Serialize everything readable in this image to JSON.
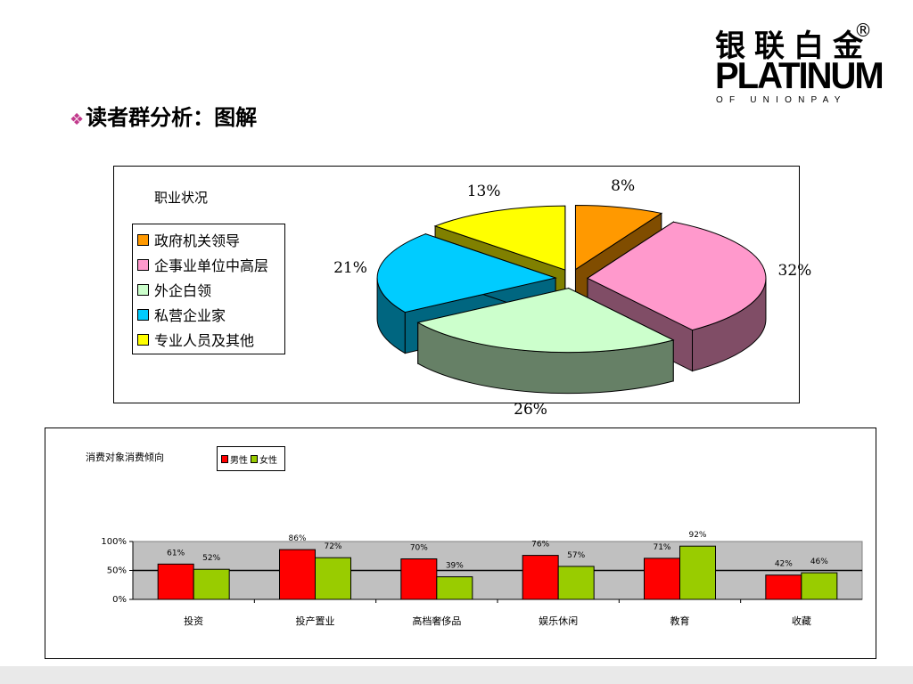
{
  "title": "读者群分析：图解",
  "logo": {
    "cn": "银联白金",
    "en": "PLATINUM",
    "sub": "OF UNIONPAY",
    "reg": "®"
  },
  "chart_data": [
    {
      "type": "pie",
      "title": "职业状况",
      "categories": [
        "政府机关领导",
        "企事业单位中高层",
        "外企白领",
        "私营企业家",
        "专业人员及其他"
      ],
      "values": [
        8,
        32,
        26,
        21,
        13
      ],
      "labels": [
        "8%",
        "32%",
        "26%",
        "21%",
        "13%"
      ],
      "colors": [
        "#ff9900",
        "#ff99cc",
        "#ccffcc",
        "#00ccff",
        "#ffff00"
      ],
      "legend_position": "left"
    },
    {
      "type": "bar",
      "title": "消费对象消费倾向",
      "categories": [
        "投资",
        "投产置业",
        "高档奢侈品",
        "娱乐休闲",
        "教育",
        "收藏"
      ],
      "series": [
        {
          "name": "男性",
          "values": [
            61,
            86,
            70,
            76,
            71,
            42
          ],
          "labels": [
            "61%",
            "86%",
            "70%",
            "76%",
            "71%",
            "42%"
          ],
          "color": "#ff0000"
        },
        {
          "name": "女性",
          "values": [
            52,
            72,
            39,
            57,
            92,
            46
          ],
          "labels": [
            "52%",
            "72%",
            "39%",
            "57%",
            "92%",
            "46%"
          ],
          "color": "#99cc00"
        }
      ],
      "yticks": [
        "100%",
        "50%",
        "0%"
      ],
      "ylim": [
        0,
        100
      ],
      "legend_position": "top-left"
    }
  ]
}
